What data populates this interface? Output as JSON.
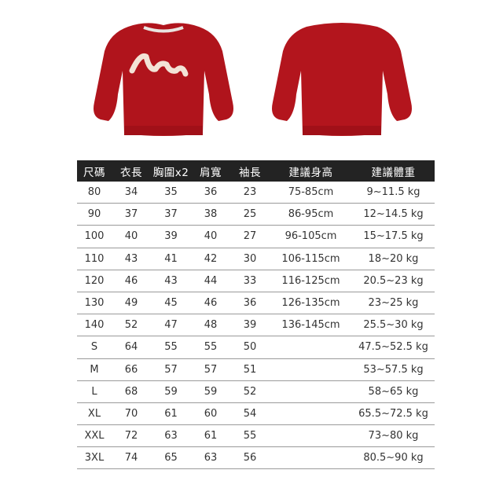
{
  "colors": {
    "garment": "#b0141c",
    "header_bg": "#232323",
    "logo": "#f3e3d6"
  },
  "images": [
    {
      "name": "sweatshirt-front",
      "icon": "sweatshirt-front-icon"
    },
    {
      "name": "sweatshirt-back",
      "icon": "sweatshirt-back-icon"
    }
  ],
  "table": {
    "headers": [
      "尺碼",
      "衣長",
      "胸圍x2",
      "肩寬",
      "袖長",
      "建議身高",
      "建議體重"
    ],
    "rows": [
      [
        "80",
        "34",
        "35",
        "36",
        "23",
        "75-85cm",
        "9~11.5 kg"
      ],
      [
        "90",
        "37",
        "37",
        "38",
        "25",
        "86-95cm",
        "12~14.5 kg"
      ],
      [
        "100",
        "40",
        "39",
        "40",
        "27",
        "96-105cm",
        "15~17.5 kg"
      ],
      [
        "110",
        "43",
        "41",
        "42",
        "30",
        "106-115cm",
        "18~20 kg"
      ],
      [
        "120",
        "46",
        "43",
        "44",
        "33",
        "116-125cm",
        "20.5~23 kg"
      ],
      [
        "130",
        "49",
        "45",
        "46",
        "36",
        "126-135cm",
        "23~25 kg"
      ],
      [
        "140",
        "52",
        "47",
        "48",
        "39",
        "136-145cm",
        "25.5~30 kg"
      ],
      [
        "S",
        "64",
        "55",
        "55",
        "50",
        "",
        "47.5~52.5 kg"
      ],
      [
        "M",
        "66",
        "57",
        "57",
        "51",
        "",
        "53~57.5 kg"
      ],
      [
        "L",
        "68",
        "59",
        "59",
        "52",
        "",
        "58~65 kg"
      ],
      [
        "XL",
        "70",
        "61",
        "60",
        "54",
        "",
        "65.5~72.5 kg"
      ],
      [
        "XXL",
        "72",
        "63",
        "61",
        "55",
        "",
        "73~80 kg"
      ],
      [
        "3XL",
        "74",
        "65",
        "63",
        "56",
        "",
        "80.5~90 kg"
      ]
    ]
  }
}
